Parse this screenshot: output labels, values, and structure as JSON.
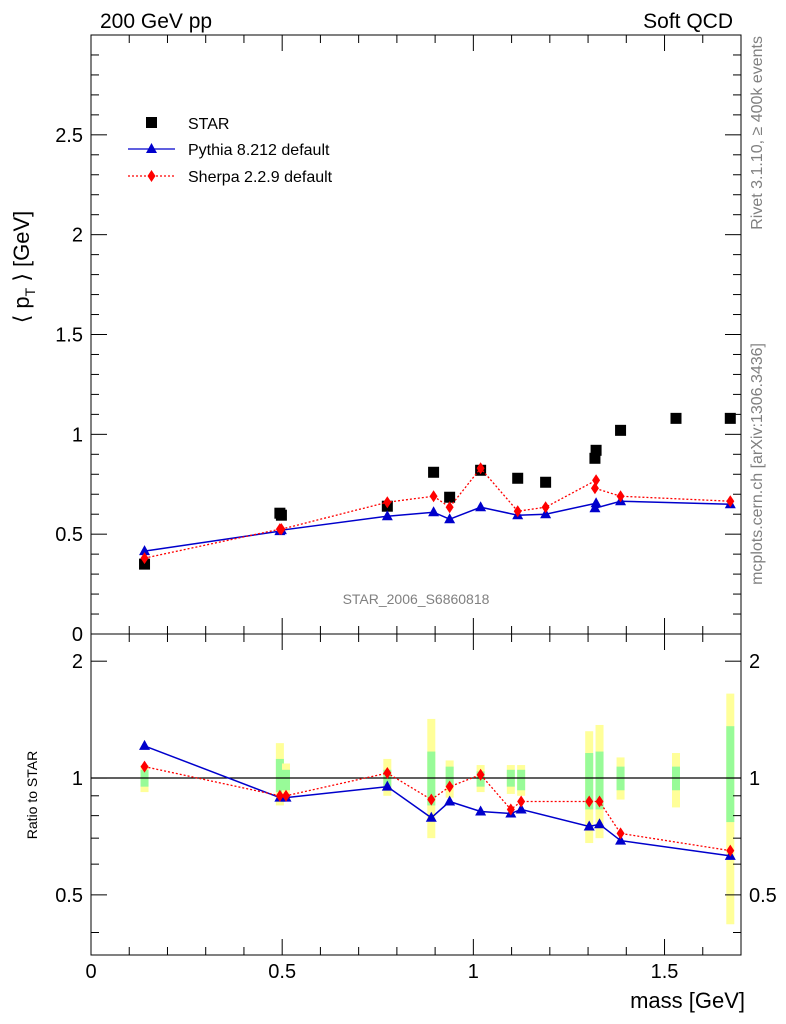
{
  "header": {
    "left": "200 GeV pp",
    "right": "Soft QCD"
  },
  "side_labels": {
    "rivet": "Rivet 3.1.10, ≥ 400k events",
    "mcplots": "mcplots.cern.ch [arXiv:1306.3436]"
  },
  "analysis_id": "STAR_2006_S6860818",
  "colors": {
    "star": "#000000",
    "pythia": "#0000cc",
    "sherpa": "#ff0000",
    "band_inner": "#98fb98",
    "band_outer": "#ffff99"
  },
  "chart_data": [
    {
      "type": "scatter",
      "panel": "main",
      "xlabel": "",
      "ylabel_prefix": "⟨ p",
      "ylabel_sub": "T",
      "ylabel_suffix": " ⟩ [GeV]",
      "xlim": [
        0,
        1.7
      ],
      "ylim": [
        0,
        3.0
      ],
      "y_ticks": [
        0,
        0.5,
        1,
        1.5,
        2,
        2.5
      ],
      "y_tick_labels": [
        "0",
        "0.5",
        "1",
        "1.5",
        "2",
        "2.5"
      ],
      "legend": {
        "placement": "top-left",
        "entries": [
          "STAR",
          "Pythia 8.212 default",
          "Sherpa 2.2.9 default"
        ]
      },
      "series": [
        {
          "name": "STAR",
          "marker": "square",
          "x": [
            0.14,
            0.494,
            0.498,
            0.775,
            0.896,
            0.938,
            1.019,
            1.116,
            1.189,
            1.321,
            1.318,
            1.385,
            1.53,
            1.672
          ],
          "y": [
            0.35,
            0.605,
            0.595,
            0.64,
            0.81,
            0.685,
            0.82,
            0.78,
            0.76,
            0.92,
            0.88,
            1.02,
            1.08,
            1.08
          ]
        },
        {
          "name": "Pythia 8.212 default",
          "marker": "triangle",
          "line": "solid",
          "x": [
            0.14,
            0.494,
            0.498,
            0.775,
            0.896,
            0.938,
            1.019,
            1.116,
            1.189,
            1.321,
            1.318,
            1.385,
            1.672
          ],
          "y": [
            0.415,
            0.515,
            0.52,
            0.59,
            0.61,
            0.575,
            0.635,
            0.595,
            0.6,
            0.655,
            0.63,
            0.665,
            0.65
          ]
        },
        {
          "name": "Sherpa 2.2.9 default",
          "marker": "diamond",
          "line": "dotted",
          "x": [
            0.14,
            0.494,
            0.498,
            0.775,
            0.896,
            0.938,
            1.019,
            1.116,
            1.189,
            1.321,
            1.318,
            1.385,
            1.672
          ],
          "y": [
            0.38,
            0.525,
            0.525,
            0.66,
            0.69,
            0.635,
            0.83,
            0.615,
            0.635,
            0.77,
            0.73,
            0.69,
            0.665
          ]
        }
      ]
    },
    {
      "type": "scatter",
      "panel": "ratio",
      "xlabel": "mass [GeV]",
      "ylabel": "Ratio to STAR",
      "xlim": [
        0,
        1.7
      ],
      "ylim": [
        0.35,
        2.35
      ],
      "y_ticks": [
        0.5,
        1,
        2
      ],
      "y_tick_labels": [
        "0.5",
        "1",
        "2"
      ],
      "x_ticks": [
        0,
        0.5,
        1,
        1.5
      ],
      "x_tick_labels": [
        "0",
        "0.5",
        "1",
        "1.5"
      ],
      "bands": {
        "x": [
          0.14,
          0.494,
          0.51,
          0.775,
          0.89,
          0.938,
          1.019,
          1.098,
          1.125,
          1.303,
          1.33,
          1.385,
          1.53,
          1.672
        ],
        "inner": [
          [
            0.95,
            1.05
          ],
          [
            0.92,
            1.12
          ],
          [
            0.93,
            1.05
          ],
          [
            0.95,
            1.05
          ],
          [
            0.85,
            1.17
          ],
          [
            0.95,
            1.07
          ],
          [
            0.95,
            1.04
          ],
          [
            0.95,
            1.05
          ],
          [
            0.93,
            1.05
          ],
          [
            0.83,
            1.16
          ],
          [
            0.83,
            1.17
          ],
          [
            0.93,
            1.07
          ],
          [
            0.93,
            1.07
          ],
          [
            0.77,
            1.36
          ]
        ],
        "outer": [
          [
            0.92,
            1.08
          ],
          [
            0.85,
            1.23
          ],
          [
            0.88,
            1.09
          ],
          [
            0.9,
            1.12
          ],
          [
            0.7,
            1.42
          ],
          [
            0.89,
            1.11
          ],
          [
            0.92,
            1.08
          ],
          [
            0.91,
            1.08
          ],
          [
            0.9,
            1.08
          ],
          [
            0.68,
            1.32
          ],
          [
            0.7,
            1.37
          ],
          [
            0.88,
            1.13
          ],
          [
            0.84,
            1.16
          ],
          [
            0.42,
            1.65
          ]
        ]
      },
      "series": [
        {
          "name": "Pythia 8.212 default",
          "marker": "triangle",
          "line": "solid",
          "x": [
            0.14,
            0.494,
            0.51,
            0.775,
            0.89,
            0.938,
            1.019,
            1.098,
            1.125,
            1.303,
            1.33,
            1.385,
            1.672
          ],
          "y": [
            1.21,
            0.89,
            0.89,
            0.95,
            0.79,
            0.87,
            0.82,
            0.81,
            0.83,
            0.75,
            0.76,
            0.69,
            0.63
          ]
        },
        {
          "name": "Sherpa 2.2.9 default",
          "marker": "diamond",
          "line": "dotted",
          "x": [
            0.14,
            0.494,
            0.51,
            0.775,
            0.89,
            0.938,
            1.019,
            1.098,
            1.125,
            1.303,
            1.33,
            1.385,
            1.672
          ],
          "y": [
            1.07,
            0.9,
            0.9,
            1.03,
            0.88,
            0.95,
            1.02,
            0.83,
            0.87,
            0.87,
            0.87,
            0.72,
            0.65
          ]
        }
      ]
    }
  ]
}
